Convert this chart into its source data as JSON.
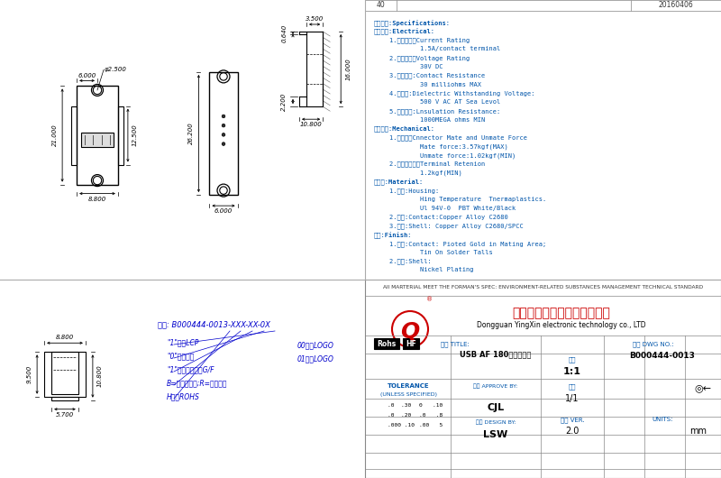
{
  "bg_color": "#ffffff",
  "line_color": "#000000",
  "dim_color": "#000000",
  "text_color": "#0000cc",
  "spec_color": "#0055aa",
  "title_row": "40",
  "date": "20160406",
  "specs": [
    "规格说明:Specifications:",
    "电气特性:Electrical:",
    "    1.额定电流：Current Rating",
    "            1.5A/contact terminal",
    "    2.额定电压：Voltage Rating",
    "            30V DC",
    "    3.接触阻抗:Contact Resistance",
    "            30 milliohms MAX",
    "    4.耔电压:Dielectric Withstanding Voltage:",
    "            500 V AC AT Sea Levol",
    "    5.绕缘阻抗:Lnsulation Resistance:",
    "            1000MEGA ohms MIN",
    "物理性能:Mechanical:",
    "    1.插拔力：Cnnector Mate and Unmate Force",
    "            Mate force:3.57kgf(MAX)",
    "            Unmate force:1.02kgf(MIN)",
    "    2.端子保持力：Terminal Retenion",
    "            1.2kgf(MIN)",
    "原材料:Material:",
    "    1.塑胶:Housing:",
    "            Hing Temperature  Tnermaplastics.",
    "            Ul 94V-0  PBT White/Black",
    "    2.端子:Contact:Copper Alloy C2680",
    "    3.外壳:Shell: Copper Alloy C2680/SPCC",
    "电退:Finish:",
    "    1.端子:Contact: Pioted Gold in Mating Area;",
    "            Tin On Solder Talls",
    "    2.外壳:Shell:",
    "            Nickel Plating"
  ],
  "part_number": "B000444-0013-XXX-XX-0X",
  "part_notes": [
    "\"1\"表示LCP",
    "\"0\"表示黑色",
    "\"1\"表示端子镕金G/F",
    "B=（吸型盘）;R=（卷装）",
    "H表示ROHS"
  ],
  "logo_notes": [
    "00：有LOGO",
    "01：没LOGO"
  ],
  "company_cn": "东莞市颖鑫电子科技有限公司",
  "company_en": "Dongguan YingXin electronic technology co., LTD",
  "rohs_text": "Rohs",
  "hf_text": "HF",
  "title_label": "品名 TITLE:",
  "title_value": "USB AF 180度直插防水",
  "scale_label": "比例",
  "scale_value": "1:1",
  "dwg_label": "图号 DWG NO.:",
  "dwg_value": "B000444-0013",
  "sheet_label": "张数",
  "sheet_value": "1/1",
  "ver_label": "版本 VER.",
  "ver_value": "2.0",
  "units_label": "UNITS:",
  "units_value": "mm",
  "approve_label": "审批 APPROVE BY:",
  "approve_value": "CJL",
  "design_label": "设计 DESIGN BY:",
  "design_value": "LSW",
  "all_material": "All MARTERIAL MEET THE FORMAN'S SPEC: ENVIRONMENT-RELATED SUBSTANCES MANAGEMENT TECHNICAL STANDARD",
  "tolerance_title": "TOLERANCE",
  "tolerance_sub": "(UNLESS SPECIFIED)",
  "tol_col1": [
    ".0  .30",
    ".0  .20",
    ".000 .10"
  ],
  "tol_col2": [
    "0   .10",
    ".0   .8",
    ".00   5"
  ]
}
